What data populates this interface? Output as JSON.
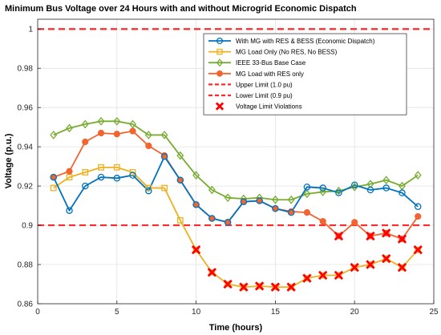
{
  "chart_data": {
    "type": "line",
    "title": "Minimum Bus Voltage over 24 Hours with and without Microgrid Economic Dispatch",
    "xlabel": "Time (hours)",
    "ylabel": "Voltage (p.u.)",
    "xlim": [
      0,
      25
    ],
    "ylim": [
      0.86,
      1.005
    ],
    "xticks": [
      0,
      5,
      10,
      15,
      20,
      25
    ],
    "yticks": [
      0.86,
      0.88,
      0.9,
      0.92,
      0.94,
      0.96,
      0.98,
      1
    ],
    "ytick_labels": [
      "0.86",
      "0.88",
      "0.9",
      "0.92",
      "0.94",
      "0.96",
      "0.98",
      "1"
    ],
    "grid": true,
    "legend_position": "top-right",
    "x": [
      1,
      2,
      3,
      4,
      5,
      6,
      7,
      8,
      9,
      10,
      11,
      12,
      13,
      14,
      15,
      16,
      17,
      18,
      19,
      20,
      21,
      22,
      23,
      24
    ],
    "series": [
      {
        "name": "With MG with RES & BESS (Economic Dispatch)",
        "color": "#0072BD",
        "marker": "circle",
        "style": "solid",
        "values": [
          0.9245,
          0.9075,
          0.92,
          0.9245,
          0.924,
          0.9255,
          0.9175,
          0.935,
          0.923,
          0.9105,
          0.9035,
          0.9015,
          0.912,
          0.9125,
          0.9085,
          0.9065,
          0.9195,
          0.919,
          0.9165,
          0.9205,
          0.918,
          0.919,
          0.9165,
          0.9095
        ]
      },
      {
        "name": "MG Load Only (No RES, No BESS)",
        "color": "#EDB120",
        "marker": "square",
        "style": "solid",
        "values": [
          0.919,
          0.9245,
          0.927,
          0.9295,
          0.9295,
          0.927,
          0.919,
          0.919,
          0.9025,
          0.8875,
          0.876,
          0.87,
          0.8685,
          0.869,
          0.8685,
          0.8685,
          0.873,
          0.8745,
          0.8745,
          0.8785,
          0.88,
          0.883,
          0.8785,
          0.8875
        ]
      },
      {
        "name": "IEEE 33-Bus Base Case",
        "color": "#77AC30",
        "marker": "diamond",
        "style": "solid",
        "values": [
          0.946,
          0.9495,
          0.9515,
          0.953,
          0.953,
          0.9515,
          0.946,
          0.946,
          0.9355,
          0.9255,
          0.918,
          0.914,
          0.9135,
          0.914,
          0.913,
          0.913,
          0.916,
          0.917,
          0.9175,
          0.9195,
          0.921,
          0.923,
          0.92,
          0.9255
        ]
      },
      {
        "name": "MG Load with RES only",
        "color": "#F26430",
        "marker": "pentagram",
        "style": "solid",
        "values": [
          0.9245,
          0.9275,
          0.9425,
          0.947,
          0.9465,
          0.948,
          0.9405,
          0.9355,
          0.923,
          0.9105,
          0.9035,
          0.9015,
          0.912,
          0.9125,
          0.9085,
          0.907,
          0.9065,
          0.902,
          0.8945,
          0.9015,
          0.8945,
          0.896,
          0.893,
          0.9045
        ]
      },
      {
        "name": "Upper Limit (1.0 pu)",
        "color": "#FF2A2A",
        "marker": "none",
        "style": "dashed",
        "constant": 1.0
      },
      {
        "name": "Lower Limit (0.9 pu)",
        "color": "#FF2A2A",
        "marker": "none",
        "style": "dashed",
        "constant": 0.9
      },
      {
        "name": "Voltage Limit Violations",
        "color": "#FF0000",
        "marker": "x",
        "style": "none",
        "points": [
          [
            10,
            0.8875
          ],
          [
            11,
            0.876
          ],
          [
            12,
            0.87
          ],
          [
            13,
            0.8685
          ],
          [
            14,
            0.869
          ],
          [
            15,
            0.8685
          ],
          [
            16,
            0.8685
          ],
          [
            17,
            0.873
          ],
          [
            18,
            0.8745
          ],
          [
            19,
            0.8745
          ],
          [
            19,
            0.8945
          ],
          [
            20,
            0.8785
          ],
          [
            21,
            0.88
          ],
          [
            21,
            0.8945
          ],
          [
            22,
            0.883
          ],
          [
            22,
            0.896
          ],
          [
            23,
            0.8785
          ],
          [
            23,
            0.893
          ],
          [
            24,
            0.8875
          ]
        ]
      }
    ]
  }
}
